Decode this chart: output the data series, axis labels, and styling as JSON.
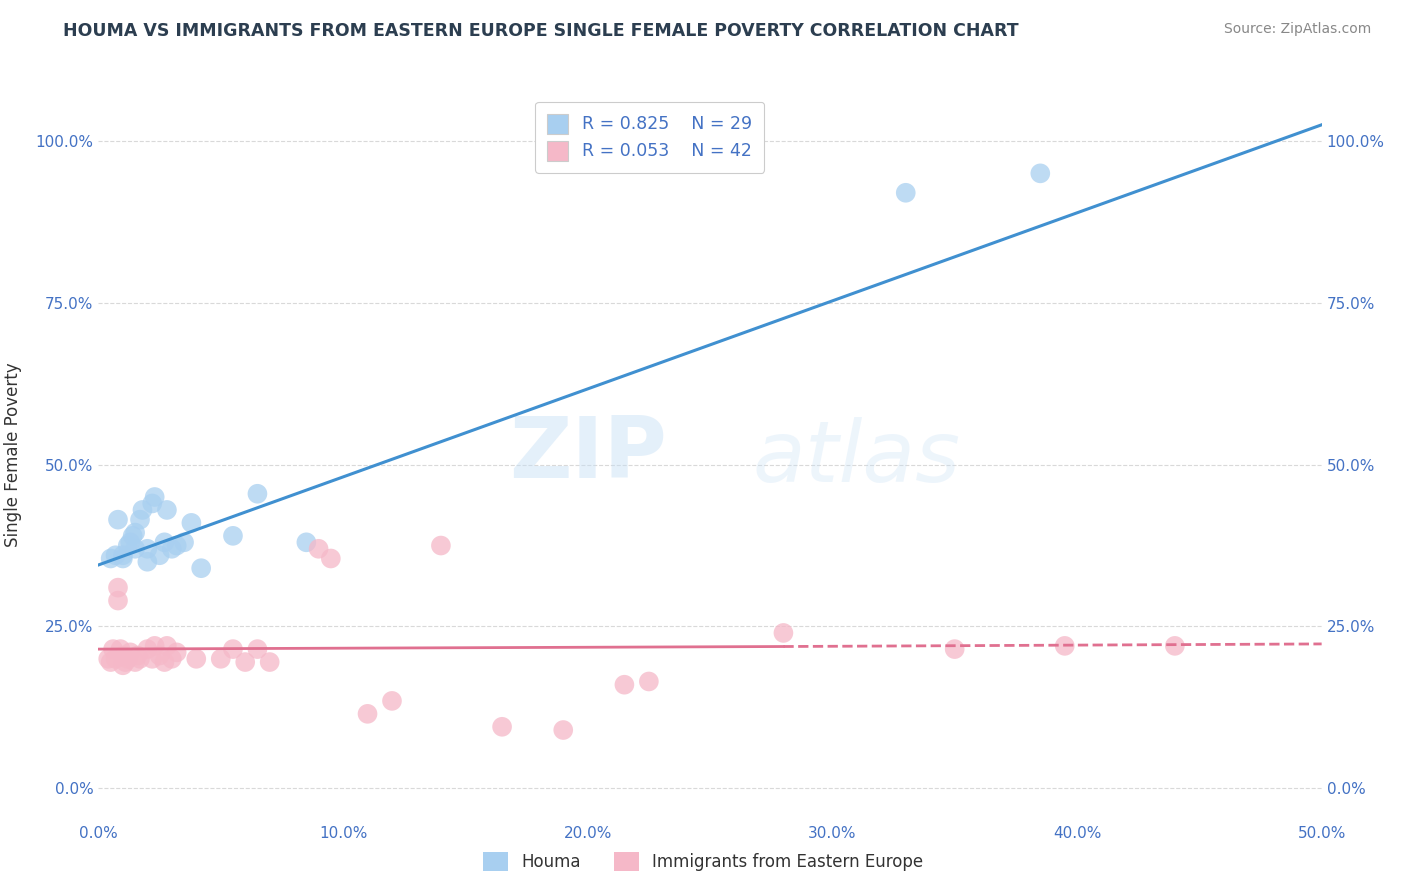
{
  "title": "HOUMA VS IMMIGRANTS FROM EASTERN EUROPE SINGLE FEMALE POVERTY CORRELATION CHART",
  "source": "Source: ZipAtlas.com",
  "xlabel_blue": "Houma",
  "xlabel_pink": "Immigrants from Eastern Europe",
  "ylabel": "Single Female Poverty",
  "watermark_zip": "ZIP",
  "watermark_atlas": "atlas",
  "xmin": 0.0,
  "xmax": 0.5,
  "ymin": -0.05,
  "ymax": 1.08,
  "yticks": [
    0.0,
    0.25,
    0.5,
    0.75,
    1.0
  ],
  "ytick_labels": [
    "0.0%",
    "25.0%",
    "50.0%",
    "75.0%",
    "100.0%"
  ],
  "xticks": [
    0.0,
    0.1,
    0.2,
    0.3,
    0.4,
    0.5
  ],
  "xtick_labels": [
    "0.0%",
    "10.0%",
    "20.0%",
    "30.0%",
    "40.0%",
    "50.0%"
  ],
  "legend_r_blue": "R = 0.825",
  "legend_n_blue": "N = 29",
  "legend_r_pink": "R = 0.053",
  "legend_n_pink": "N = 42",
  "blue_color": "#a8cff0",
  "pink_color": "#f5b8c8",
  "line_blue": "#4090d0",
  "line_pink": "#e07090",
  "blue_x": [
    0.005,
    0.007,
    0.008,
    0.01,
    0.01,
    0.012,
    0.013,
    0.014,
    0.015,
    0.015,
    0.017,
    0.018,
    0.02,
    0.02,
    0.022,
    0.023,
    0.025,
    0.027,
    0.028,
    0.03,
    0.032,
    0.035,
    0.038,
    0.042,
    0.055,
    0.065,
    0.085,
    0.33,
    0.385
  ],
  "blue_y": [
    0.355,
    0.36,
    0.415,
    0.355,
    0.36,
    0.375,
    0.38,
    0.39,
    0.37,
    0.395,
    0.415,
    0.43,
    0.35,
    0.37,
    0.44,
    0.45,
    0.36,
    0.38,
    0.43,
    0.37,
    0.375,
    0.38,
    0.41,
    0.34,
    0.39,
    0.455,
    0.38,
    0.92,
    0.95
  ],
  "pink_x": [
    0.004,
    0.005,
    0.006,
    0.007,
    0.008,
    0.008,
    0.009,
    0.01,
    0.01,
    0.011,
    0.012,
    0.013,
    0.015,
    0.016,
    0.017,
    0.02,
    0.022,
    0.023,
    0.025,
    0.027,
    0.028,
    0.03,
    0.032,
    0.04,
    0.05,
    0.055,
    0.06,
    0.065,
    0.07,
    0.09,
    0.095,
    0.11,
    0.12,
    0.14,
    0.165,
    0.19,
    0.215,
    0.225,
    0.28,
    0.35,
    0.395,
    0.44
  ],
  "pink_y": [
    0.2,
    0.195,
    0.215,
    0.2,
    0.29,
    0.31,
    0.215,
    0.19,
    0.205,
    0.195,
    0.2,
    0.21,
    0.195,
    0.205,
    0.2,
    0.215,
    0.2,
    0.22,
    0.205,
    0.195,
    0.22,
    0.2,
    0.21,
    0.2,
    0.2,
    0.215,
    0.195,
    0.215,
    0.195,
    0.37,
    0.355,
    0.115,
    0.135,
    0.375,
    0.095,
    0.09,
    0.16,
    0.165,
    0.24,
    0.215,
    0.22,
    0.22
  ],
  "background_color": "#ffffff",
  "grid_color": "#d0d0d0",
  "title_color": "#2c3e50",
  "source_color": "#888888",
  "axis_label_color": "#333333",
  "tick_label_color": "#4472c4",
  "legend_label_color": "#4472c4"
}
